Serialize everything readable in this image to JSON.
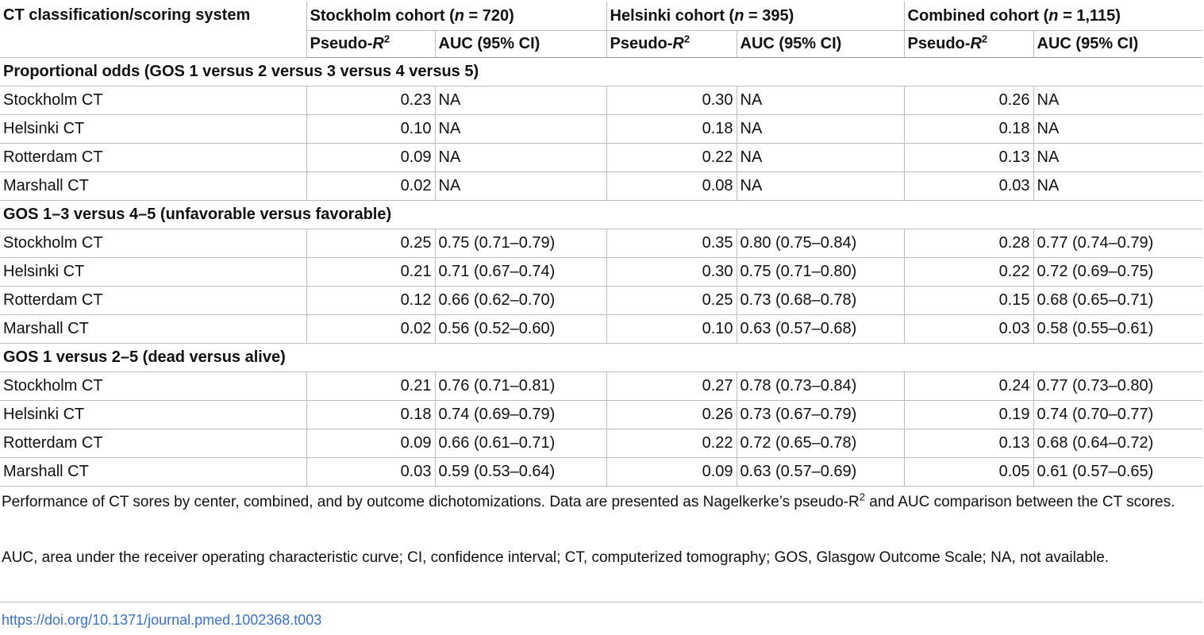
{
  "table": {
    "header": {
      "first_col": "CT classification/scoring system",
      "cohorts": [
        {
          "name": "Stockholm cohort",
          "n_label": "n",
          "n_value": "720"
        },
        {
          "name": "Helsinki cohort",
          "n_label": "n",
          "n_value": "395"
        },
        {
          "name": "Combined cohort",
          "n_label": "n",
          "n_value": "1,115"
        }
      ],
      "pseudo_prefix": "Pseudo-",
      "pseudo_var": "R",
      "pseudo_sup": "2",
      "auc_label": "AUC (95% CI)"
    },
    "sections": [
      {
        "title": "Proportional odds (GOS 1 versus 2 versus 3 versus 4 versus 5)",
        "rows": [
          {
            "name": "Stockholm CT",
            "values": [
              "0.23",
              "NA",
              "0.30",
              "NA",
              "0.26",
              "NA"
            ]
          },
          {
            "name": "Helsinki CT",
            "values": [
              "0.10",
              "NA",
              "0.18",
              "NA",
              "0.18",
              "NA"
            ]
          },
          {
            "name": "Rotterdam CT",
            "values": [
              "0.09",
              "NA",
              "0.22",
              "NA",
              "0.13",
              "NA"
            ]
          },
          {
            "name": "Marshall CT",
            "values": [
              "0.02",
              "NA",
              "0.08",
              "NA",
              "0.03",
              "NA"
            ]
          }
        ]
      },
      {
        "title": "GOS 1–3 versus 4–5 (unfavorable versus favorable)",
        "rows": [
          {
            "name": "Stockholm CT",
            "values": [
              "0.25",
              "0.75 (0.71–0.79)",
              "0.35",
              "0.80 (0.75–0.84)",
              "0.28",
              "0.77 (0.74–0.79)"
            ]
          },
          {
            "name": "Helsinki CT",
            "values": [
              "0.21",
              "0.71 (0.67–0.74)",
              "0.30",
              "0.75 (0.71–0.80)",
              "0.22",
              "0.72 (0.69–0.75)"
            ]
          },
          {
            "name": "Rotterdam CT",
            "values": [
              "0.12",
              "0.66 (0.62–0.70)",
              "0.25",
              "0.73 (0.68–0.78)",
              "0.15",
              "0.68 (0.65–0.71)"
            ]
          },
          {
            "name": "Marshall CT",
            "values": [
              "0.02",
              "0.56 (0.52–0.60)",
              "0.10",
              "0.63 (0.57–0.68)",
              "0.03",
              "0.58 (0.55–0.61)"
            ]
          }
        ]
      },
      {
        "title": "GOS 1 versus 2–5 (dead versus alive)",
        "rows": [
          {
            "name": "Stockholm CT",
            "values": [
              "0.21",
              "0.76 (0.71–0.81)",
              "0.27",
              "0.78 (0.73–0.84)",
              "0.24",
              "0.77 (0.73–0.80)"
            ]
          },
          {
            "name": "Helsinki CT",
            "values": [
              "0.18",
              "0.74 (0.69–0.79)",
              "0.26",
              "0.73 (0.67–0.79)",
              "0.19",
              "0.74 (0.70–0.77)"
            ]
          },
          {
            "name": "Rotterdam CT",
            "values": [
              "0.09",
              "0.66 (0.61–0.71)",
              "0.22",
              "0.72 (0.65–0.78)",
              "0.13",
              "0.68 (0.64–0.72)"
            ]
          },
          {
            "name": "Marshall CT",
            "values": [
              "0.03",
              "0.59 (0.53–0.64)",
              "0.09",
              "0.63 (0.57–0.69)",
              "0.05",
              "0.61 (0.57–0.65)"
            ]
          }
        ]
      }
    ]
  },
  "footnotes": {
    "fn1_before_sup": "Performance of CT sores by center, combined, and by outcome dichotomizations. Data are presented as Nagelkerke’s pseudo-R",
    "fn1_sup": "2",
    "fn1_after_sup": " and AUC comparison between the CT scores.",
    "fn2": "AUC, area under the receiver operating characteristic curve; CI, confidence interval; CT, computerized tomography; GOS, Glasgow Outcome Scale; NA, not available."
  },
  "doi": "https://doi.org/10.1371/journal.pmed.1002368.t003",
  "colors": {
    "text": "#111111",
    "rule": "#bdbdbd",
    "link": "#3a73c6"
  }
}
